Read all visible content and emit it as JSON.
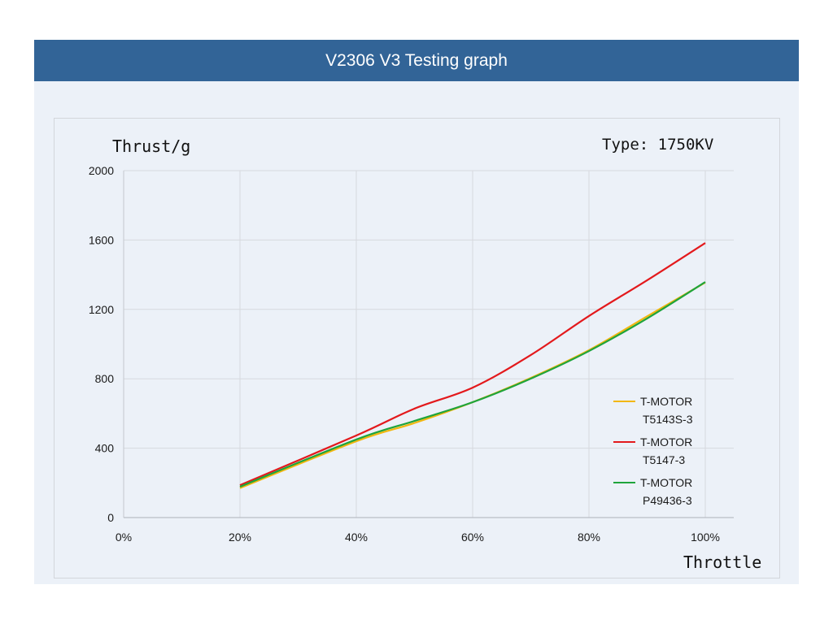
{
  "header": {
    "title": "V2306 V3 Testing graph"
  },
  "chart_data": {
    "type": "line",
    "title": "V2306 V3 Testing graph",
    "annotation": "Type: 1750KV",
    "xlabel": "Throttle",
    "ylabel": "Thrust/g",
    "xlim": [
      0,
      100
    ],
    "ylim": [
      0,
      2000
    ],
    "x_ticks": [
      "0%",
      "20%",
      "40%",
      "60%",
      "80%",
      "100%"
    ],
    "y_ticks": [
      "0",
      "400",
      "800",
      "1200",
      "1600",
      "2000"
    ],
    "x_tick_values": [
      0,
      20,
      40,
      60,
      80,
      100
    ],
    "y_tick_values": [
      0,
      400,
      800,
      1200,
      1600,
      2000
    ],
    "grid": true,
    "legend_position": "lower-right",
    "x": [
      20,
      40,
      50,
      60,
      70,
      80,
      90,
      100
    ],
    "series": [
      {
        "name": "T-MOTOR T5143S-3",
        "legend_line1": "T-MOTOR",
        "legend_line2": "T5143S-3",
        "color": "#f2b70f",
        "values": [
          170,
          440,
          545,
          665,
          805,
          965,
          1160,
          1355
        ]
      },
      {
        "name": "T-MOTOR T5147-3",
        "legend_line1": "T-MOTOR",
        "legend_line2": "T5147-3",
        "color": "#e3191c",
        "values": [
          187,
          473,
          628,
          749,
          937,
          1162,
          1368,
          1583
        ]
      },
      {
        "name": "T-MOTOR P49436-3",
        "legend_line1": "T-MOTOR",
        "legend_line2": "P49436-3",
        "color": "#1fa43c",
        "values": [
          178,
          450,
          557,
          665,
          801,
          960,
          1148,
          1358
        ]
      }
    ]
  }
}
